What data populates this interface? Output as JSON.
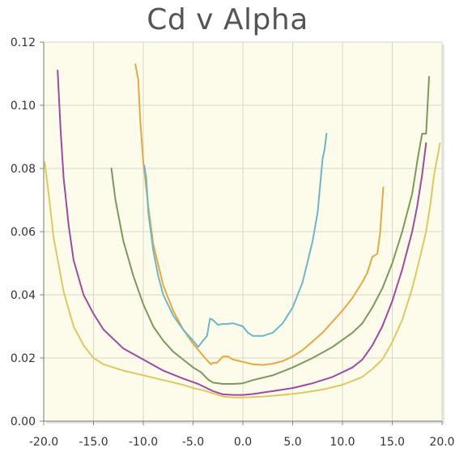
{
  "chart_data": {
    "type": "line",
    "title": "Cd v Alpha",
    "xlabel": "",
    "ylabel": "",
    "xlim": [
      -20.0,
      20.0
    ],
    "ylim": [
      0.0,
      0.12
    ],
    "x_ticks": [
      "-20.0",
      "-15.0",
      "-10.0",
      "-5.0",
      "0.0",
      "5.0",
      "10.0",
      "15.0",
      "20.0"
    ],
    "y_ticks": [
      "0.00",
      "0.02",
      "0.04",
      "0.06",
      "0.08",
      "0.10",
      "0.12"
    ],
    "grid": true,
    "legend": "none",
    "series": [
      {
        "color": "#e0c860",
        "x": [
          -19.9,
          -19.5,
          -19.0,
          -18.0,
          -17.0,
          -16.0,
          -15.0,
          -14.0,
          -12.0,
          -10.0,
          -8.0,
          -6.0,
          -5.0,
          -4.0,
          -3.0,
          -2.0,
          -1.0,
          0.0,
          2.0,
          4.0,
          6.0,
          8.0,
          10.0,
          12.0,
          13.0,
          14.0,
          15.0,
          16.0,
          17.0,
          17.8,
          18.4,
          18.8,
          19.2,
          19.8
        ],
        "y": [
          0.082,
          0.072,
          0.058,
          0.041,
          0.03,
          0.024,
          0.02,
          0.018,
          0.016,
          0.0145,
          0.013,
          0.0115,
          0.0105,
          0.0098,
          0.0088,
          0.0078,
          0.0075,
          0.0075,
          0.0078,
          0.0083,
          0.009,
          0.01,
          0.0115,
          0.014,
          0.0165,
          0.0195,
          0.025,
          0.032,
          0.042,
          0.052,
          0.06,
          0.068,
          0.078,
          0.088
        ]
      },
      {
        "color": "#a04aa0",
        "x": [
          -18.6,
          -18.3,
          -18.0,
          -17.5,
          -17.0,
          -16.0,
          -15.0,
          -14.0,
          -12.0,
          -10.0,
          -8.0,
          -6.0,
          -4.5,
          -3.0,
          -2.0,
          -1.0,
          0.0,
          1.0,
          3.0,
          5.0,
          7.0,
          9.0,
          11.0,
          12.0,
          13.0,
          14.0,
          15.0,
          16.0,
          17.0,
          17.5,
          18.0,
          18.4
        ],
        "y": [
          0.111,
          0.092,
          0.077,
          0.062,
          0.051,
          0.04,
          0.034,
          0.029,
          0.023,
          0.0195,
          0.016,
          0.0135,
          0.0118,
          0.0095,
          0.0085,
          0.0083,
          0.0083,
          0.0086,
          0.0095,
          0.0105,
          0.012,
          0.014,
          0.017,
          0.0195,
          0.024,
          0.03,
          0.038,
          0.048,
          0.06,
          0.068,
          0.078,
          0.088
        ]
      },
      {
        "color": "#7a9a5a",
        "x": [
          -13.2,
          -12.8,
          -12.0,
          -11.0,
          -10.0,
          -9.0,
          -8.0,
          -7.0,
          -6.0,
          -5.0,
          -4.2,
          -3.5,
          -3.0,
          -2.0,
          -1.0,
          0.0,
          1.0,
          3.0,
          5.0,
          7.0,
          9.0,
          11.0,
          12.0,
          13.0,
          14.0,
          15.0,
          16.0,
          17.0,
          17.6,
          18.0,
          18.4,
          18.7
        ],
        "y": [
          0.08,
          0.07,
          0.057,
          0.046,
          0.037,
          0.03,
          0.0255,
          0.022,
          0.0195,
          0.017,
          0.0155,
          0.0132,
          0.0122,
          0.0118,
          0.0118,
          0.012,
          0.013,
          0.0145,
          0.017,
          0.02,
          0.0235,
          0.028,
          0.031,
          0.036,
          0.042,
          0.05,
          0.06,
          0.072,
          0.084,
          0.091,
          0.091,
          0.109
        ]
      },
      {
        "color": "#e8a840",
        "x": [
          -10.8,
          -10.5,
          -10.3,
          -10.0,
          -9.5,
          -9.0,
          -8.0,
          -7.0,
          -6.0,
          -5.0,
          -4.2,
          -3.8,
          -3.2,
          -3.0,
          -2.6,
          -2.0,
          -1.5,
          -1.0,
          0.0,
          1.0,
          2.0,
          3.0,
          4.0,
          5.0,
          6.0,
          8.0,
          10.0,
          11.0,
          12.0,
          12.5,
          13.0,
          13.5,
          13.8,
          14.1
        ],
        "y": [
          0.113,
          0.108,
          0.095,
          0.082,
          0.068,
          0.056,
          0.043,
          0.035,
          0.029,
          0.0245,
          0.0215,
          0.02,
          0.018,
          0.0185,
          0.0185,
          0.0205,
          0.0205,
          0.0195,
          0.0188,
          0.018,
          0.0178,
          0.0182,
          0.019,
          0.0205,
          0.0225,
          0.028,
          0.035,
          0.039,
          0.044,
          0.047,
          0.052,
          0.053,
          0.06,
          0.074
        ]
      },
      {
        "color": "#6ab8c8",
        "x": [
          -9.9,
          -9.7,
          -9.5,
          -9.0,
          -8.5,
          -8.0,
          -7.0,
          -6.0,
          -5.0,
          -4.5,
          -4.0,
          -3.6,
          -3.3,
          -3.0,
          -2.5,
          -2.0,
          -1.5,
          -1.0,
          0.0,
          0.5,
          1.0,
          2.0,
          3.0,
          4.0,
          5.0,
          6.0,
          7.0,
          7.5,
          7.8,
          8.0,
          8.2,
          8.4
        ],
        "y": [
          0.081,
          0.077,
          0.066,
          0.054,
          0.046,
          0.04,
          0.0335,
          0.029,
          0.0255,
          0.0235,
          0.0255,
          0.027,
          0.0325,
          0.032,
          0.0305,
          0.0308,
          0.0308,
          0.031,
          0.03,
          0.028,
          0.027,
          0.027,
          0.028,
          0.031,
          0.036,
          0.044,
          0.057,
          0.066,
          0.076,
          0.083,
          0.086,
          0.091
        ]
      }
    ]
  }
}
